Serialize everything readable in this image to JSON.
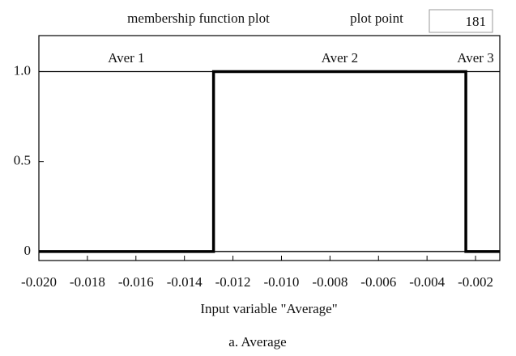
{
  "chart_data": {
    "type": "line",
    "title": "membership function plot",
    "plot_point_label": "plot point",
    "plot_point_value": "181",
    "xlabel": "Input variable \"Average\"",
    "caption": "a. Average",
    "xlim": [
      -0.02,
      -0.001
    ],
    "ylim": [
      -0.05,
      1.2
    ],
    "xticks": [
      {
        "value": -0.02,
        "label": "-0.020"
      },
      -0.018,
      -0.016,
      -0.014,
      -0.012,
      {
        "value": -0.01,
        "label": "-0.010"
      },
      -0.008,
      -0.006,
      -0.004,
      -0.002
    ],
    "yticks": [
      0,
      0.5,
      {
        "value": 1,
        "label": "1.0"
      }
    ],
    "series": [
      {
        "name": "Aver 1",
        "color": "#000000",
        "x": [
          -0.02,
          -0.0128,
          -0.0128,
          -0.001
        ],
        "values": [
          1,
          1,
          0,
          0
        ]
      },
      {
        "name": "Aver 2",
        "color": "#000000",
        "x": [
          -0.02,
          -0.0128,
          -0.0128,
          -0.0024,
          -0.0024,
          -0.001
        ],
        "values": [
          0,
          0,
          1,
          1,
          0,
          0
        ]
      },
      {
        "name": "Aver 3",
        "color": "#000000",
        "x": [
          -0.02,
          -0.0024,
          -0.0024,
          -0.001
        ],
        "values": [
          0,
          0,
          1,
          1
        ]
      }
    ]
  }
}
